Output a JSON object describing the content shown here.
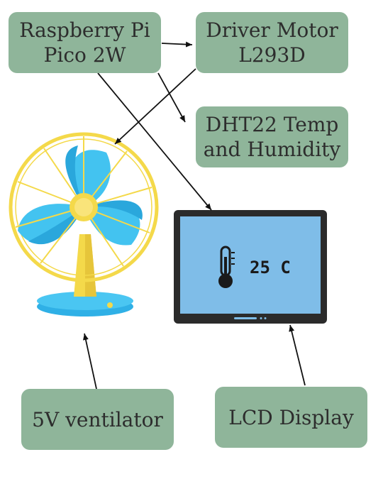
{
  "nodes": {
    "pico": {
      "label": "Raspberry Pi\nPico 2W"
    },
    "driver": {
      "label": "Driver Motor\nL293D"
    },
    "dht": {
      "label": "DHT22 Temp\nand Humidity"
    },
    "vent": {
      "label": "5V ventilator"
    },
    "lcd": {
      "label": "LCD Display"
    }
  },
  "lcd_screen": {
    "readout": "25 C"
  },
  "edges": [
    {
      "from": "pico",
      "to": "driver"
    },
    {
      "from": "pico",
      "to": "dht"
    },
    {
      "from": "pico",
      "to": "lcd"
    },
    {
      "from": "driver",
      "to": "fan"
    },
    {
      "from": "vent",
      "to": "fan"
    },
    {
      "from": "lcd",
      "to": "screen"
    }
  ],
  "colors": {
    "node_fill": "#8fb59a",
    "fan_blue": "#3fbfee",
    "fan_yellow": "#f4d94a",
    "screen_blue": "#7fbde8",
    "frame": "#2b2b2b"
  },
  "icons": [
    "fan-illustration",
    "lcd-monitor-illustration",
    "thermometer-icon"
  ]
}
